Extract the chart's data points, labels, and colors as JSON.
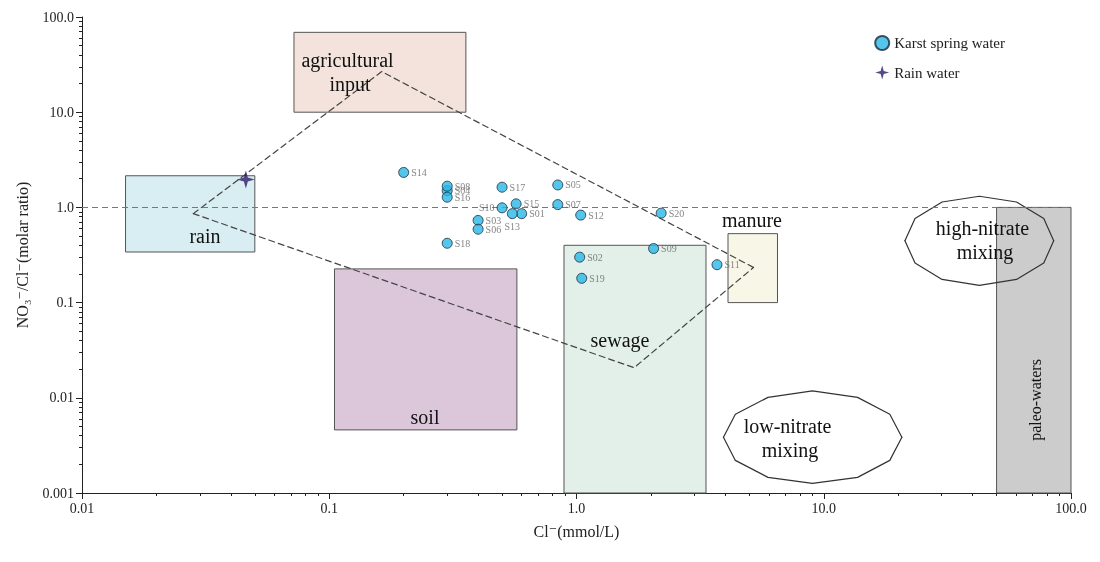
{
  "chart_data": {
    "type": "scatter",
    "xlabel": "Cl⁻(mmol/L)",
    "ylabel": "NO₃⁻/Cl⁻(molar ratio)",
    "log": "xy",
    "xlim": [
      0.01,
      100
    ],
    "ylim": [
      0.001,
      100
    ],
    "xticks": [
      0.01,
      0.1,
      {
        "value": 1,
        "label": "1.0"
      },
      {
        "value": 10,
        "label": "10.0"
      },
      {
        "value": 100,
        "label": "100.0"
      }
    ],
    "yticks": [
      0.001,
      0.01,
      0.1,
      {
        "value": 1,
        "label": "1.0"
      },
      {
        "value": 10,
        "label": "10.0"
      },
      {
        "value": 100,
        "label": "100.0"
      }
    ],
    "grid": false,
    "legend": "top right",
    "ref_lines": [
      {
        "axis": "y",
        "value": 1,
        "color": "#777777",
        "line_style": "dashed"
      }
    ],
    "series": [
      {
        "name": "Karst spring water",
        "type": "scatter",
        "marker": "circle",
        "color": "#29b6e6",
        "x": [
          0.6,
          1.03,
          0.4,
          0.3,
          0.84,
          0.4,
          0.84,
          0.3,
          2.05,
          0.5,
          3.7,
          1.04,
          0.55,
          0.2,
          0.57,
          0.3,
          0.5,
          0.3,
          1.05,
          2.2
        ],
        "values": [
          0.86,
          0.3,
          0.73,
          1.5,
          1.72,
          0.59,
          1.07,
          1.67,
          0.37,
          0.99,
          0.25,
          0.83,
          0.86,
          2.33,
          1.09,
          1.28,
          1.63,
          0.42,
          0.18,
          0.87
        ],
        "value_labels": [
          "S01",
          "S02",
          "S03",
          "S04",
          "S05",
          "S06",
          "S07",
          "S08",
          "S09",
          "S10",
          "S11",
          "S12",
          "S13",
          "S14",
          "S15",
          "S16",
          "S17",
          "S18",
          "S19",
          "S20"
        ]
      },
      {
        "name": "Rain water",
        "type": "scatter",
        "marker": "star",
        "color": "#2d1b69",
        "x": [
          0.046
        ],
        "values": [
          1.96
        ]
      },
      {
        "type": "area",
        "color": "#d8eef2",
        "x": [
          0.015,
          0.05,
          0.05,
          0.015,
          0.015
        ],
        "values": [
          2.15,
          2.15,
          0.34,
          0.34,
          2.15
        ]
      },
      {
        "type": "area",
        "color": "#f3e3dc",
        "x": [
          0.072,
          0.357,
          0.357,
          0.072,
          0.072
        ],
        "values": [
          69,
          69,
          10,
          10,
          69
        ]
      },
      {
        "type": "area",
        "color": "#dcc6d9",
        "x": [
          0.105,
          0.574,
          0.574,
          0.105,
          0.105
        ],
        "values": [
          0.226,
          0.226,
          0.0046,
          0.0046,
          0.226
        ]
      },
      {
        "type": "area",
        "color": "#e3f0ea",
        "x": [
          0.89,
          3.34,
          3.34,
          0.89,
          0.89
        ],
        "values": [
          0.4,
          0.4,
          0.001,
          0.001,
          0.4
        ]
      },
      {
        "type": "area",
        "color": "#f8f6e6",
        "x": [
          4.1,
          6.5,
          6.5,
          4.1,
          4.1
        ],
        "values": [
          0.53,
          0.53,
          0.1,
          0.1,
          0.53
        ]
      },
      {
        "type": "area",
        "color": "#cccccc",
        "x": [
          50,
          100,
          100,
          50,
          50
        ],
        "values": [
          1.0,
          1.0,
          0.001,
          0.001,
          1.0
        ]
      },
      {
        "type": "line",
        "color": "#444444",
        "line_style": "dashed",
        "marker": "none",
        "x": [
          0.0282,
          0.163,
          5.2
        ],
        "values": [
          0.86,
          26.7,
          0.234
        ]
      },
      {
        "type": "line",
        "color": "#444444",
        "line_style": "dashed",
        "marker": "none",
        "x": [
          0.0282,
          1.71,
          5.2
        ],
        "values": [
          0.86,
          0.0207,
          0.234
        ]
      },
      {
        "type": "line",
        "color": "#333333",
        "line_style": "solid",
        "marker": "none",
        "x": [
          21.3,
          23.4,
          30.1,
          42.6,
          60.2,
          77.6,
          85.1
        ],
        "values": [
          0.447,
          0.766,
          1.14,
          1.31,
          1.14,
          0.766,
          0.447
        ]
      },
      {
        "type": "line",
        "color": "#333333",
        "line_style": "solid",
        "marker": "none",
        "x": [
          21.3,
          23.4,
          30.1,
          42.6,
          60.2,
          77.6,
          85.1
        ],
        "values": [
          0.447,
          0.26,
          0.175,
          0.152,
          0.175,
          0.26,
          0.447
        ]
      },
      {
        "type": "line",
        "color": "#333333",
        "line_style": "solid",
        "marker": "none",
        "x": [
          3.93,
          4.39,
          5.95,
          9.0,
          13.7,
          18.5,
          20.7
        ],
        "values": [
          0.00385,
          0.00673,
          0.0101,
          0.0118,
          0.0101,
          0.00673,
          0.00385
        ]
      },
      {
        "type": "line",
        "color": "#333333",
        "line_style": "solid",
        "marker": "none",
        "x": [
          3.93,
          4.39,
          5.95,
          9.0,
          13.7,
          18.5,
          20.7
        ],
        "values": [
          0.00385,
          0.0022,
          0.00146,
          0.00126,
          0.00146,
          0.0022,
          0.00385
        ]
      }
    ],
    "annotations": [
      "agricultural input",
      "rain",
      "soil",
      "sewage",
      "manure",
      "high-nitrate mixing",
      "low-nitrate mixing",
      "paleo-waters"
    ]
  }
}
